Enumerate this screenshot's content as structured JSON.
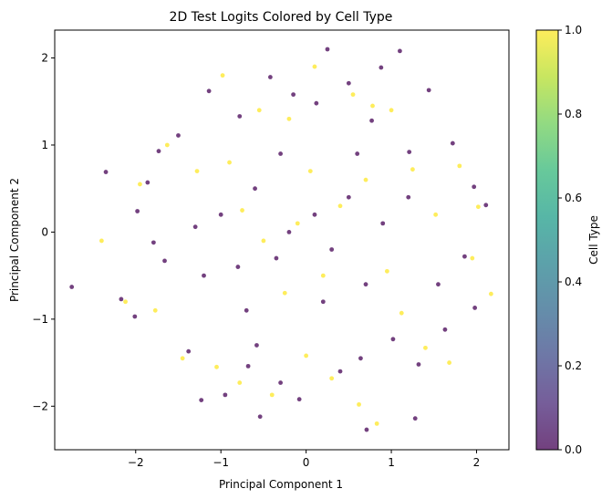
{
  "chart_data": {
    "type": "scatter",
    "title": "2D Test Logits Colored by Cell Type",
    "xlabel": "Principal Component 1",
    "ylabel": "Principal Component 2",
    "xlim": [
      -2.95,
      2.38
    ],
    "ylim": [
      -2.5,
      2.32
    ],
    "xticks": [
      -2,
      -1,
      0,
      1,
      2
    ],
    "xtick_labels": [
      "−2",
      "−1",
      "0",
      "1",
      "2"
    ],
    "yticks": [
      -2,
      -1,
      0,
      1,
      2
    ],
    "ytick_labels": [
      "−2",
      "−1",
      "0",
      "1",
      "2"
    ],
    "grid": false,
    "colormap": "viridis",
    "colorbar": {
      "label": "Cell Type",
      "range": [
        0.0,
        1.0
      ],
      "ticks": [
        0.0,
        0.2,
        0.4,
        0.6,
        0.8,
        1.0
      ],
      "tick_labels": [
        "0.0",
        "0.2",
        "0.4",
        "0.6",
        "0.8",
        "1.0"
      ],
      "stops": [
        "#440154",
        "#482878",
        "#3e4a89",
        "#31688e",
        "#26828e",
        "#1f9e89",
        "#35b779",
        "#6ece58",
        "#b5de2b",
        "#fde725"
      ]
    },
    "marker_alpha": 0.75,
    "series": [
      {
        "category_value": 0,
        "color": "#440154",
        "points": [
          [
            -2.75,
            -0.63
          ],
          [
            -2.35,
            0.69
          ],
          [
            -2.17,
            -0.77
          ],
          [
            -2.01,
            -0.97
          ],
          [
            -1.98,
            0.24
          ],
          [
            -1.86,
            0.57
          ],
          [
            -1.73,
            0.93
          ],
          [
            -1.66,
            -0.33
          ],
          [
            -1.5,
            1.11
          ],
          [
            -1.38,
            -1.37
          ],
          [
            -1.3,
            0.06
          ],
          [
            -1.23,
            -1.93
          ],
          [
            -1.14,
            1.62
          ],
          [
            -0.95,
            -1.87
          ],
          [
            -0.78,
            1.33
          ],
          [
            -0.68,
            -1.54
          ],
          [
            -0.54,
            -2.12
          ],
          [
            -0.42,
            1.78
          ],
          [
            -0.3,
            -1.73
          ],
          [
            -0.15,
            1.58
          ],
          [
            -0.08,
            -1.92
          ],
          [
            0.12,
            1.48
          ],
          [
            0.25,
            2.1
          ],
          [
            0.4,
            -1.6
          ],
          [
            0.5,
            1.71
          ],
          [
            0.64,
            -1.45
          ],
          [
            0.77,
            1.28
          ],
          [
            0.88,
            1.89
          ],
          [
            1.02,
            -1.23
          ],
          [
            1.1,
            2.08
          ],
          [
            1.21,
            0.92
          ],
          [
            1.28,
            -2.14
          ],
          [
            1.44,
            1.63
          ],
          [
            1.55,
            -0.6
          ],
          [
            1.72,
            1.02
          ],
          [
            1.86,
            -0.28
          ],
          [
            1.97,
            0.52
          ],
          [
            2.11,
            0.31
          ],
          [
            1.98,
            -0.87
          ],
          [
            1.63,
            -1.12
          ],
          [
            1.32,
            -1.52
          ],
          [
            0.71,
            -2.27
          ],
          [
            -0.58,
            -1.3
          ],
          [
            -1.79,
            -0.12
          ],
          [
            -0.2,
            0.0
          ],
          [
            0.1,
            0.2
          ],
          [
            -0.35,
            -0.3
          ],
          [
            0.3,
            -0.2
          ],
          [
            0.5,
            0.4
          ],
          [
            -0.6,
            0.5
          ],
          [
            -0.8,
            -0.4
          ],
          [
            0.7,
            -0.6
          ],
          [
            0.9,
            0.1
          ],
          [
            -1.0,
            0.2
          ],
          [
            0.2,
            -0.8
          ],
          [
            -0.3,
            0.9
          ],
          [
            0.6,
            0.9
          ],
          [
            -0.7,
            -0.9
          ],
          [
            1.2,
            0.4
          ],
          [
            -1.2,
            -0.5
          ]
        ]
      },
      {
        "category_value": 1,
        "color": "#fde725",
        "points": [
          [
            -2.4,
            -0.1
          ],
          [
            -2.12,
            -0.8
          ],
          [
            -1.95,
            0.55
          ],
          [
            -1.77,
            -0.9
          ],
          [
            -1.63,
            1.0
          ],
          [
            -1.45,
            -1.45
          ],
          [
            -1.28,
            0.7
          ],
          [
            -1.05,
            -1.55
          ],
          [
            -0.98,
            1.8
          ],
          [
            -0.78,
            -1.73
          ],
          [
            -0.55,
            1.4
          ],
          [
            -0.4,
            -1.87
          ],
          [
            -0.2,
            1.3
          ],
          [
            0.0,
            -1.42
          ],
          [
            0.1,
            1.9
          ],
          [
            0.3,
            -1.68
          ],
          [
            0.55,
            1.58
          ],
          [
            0.62,
            -1.98
          ],
          [
            0.78,
            1.45
          ],
          [
            0.83,
            -2.2
          ],
          [
            1.0,
            1.4
          ],
          [
            1.12,
            -0.93
          ],
          [
            1.25,
            0.72
          ],
          [
            1.4,
            -1.33
          ],
          [
            1.52,
            0.2
          ],
          [
            1.68,
            -1.5
          ],
          [
            1.8,
            0.76
          ],
          [
            1.95,
            -0.3
          ],
          [
            2.02,
            0.29
          ],
          [
            2.17,
            -0.71
          ],
          [
            -0.1,
            0.1
          ],
          [
            0.4,
            0.3
          ],
          [
            -0.5,
            -0.1
          ],
          [
            0.2,
            -0.5
          ],
          [
            0.7,
            0.6
          ],
          [
            -0.9,
            0.8
          ],
          [
            0.95,
            -0.45
          ],
          [
            -0.25,
            -0.7
          ],
          [
            0.05,
            0.7
          ],
          [
            -0.75,
            0.25
          ]
        ]
      }
    ]
  }
}
